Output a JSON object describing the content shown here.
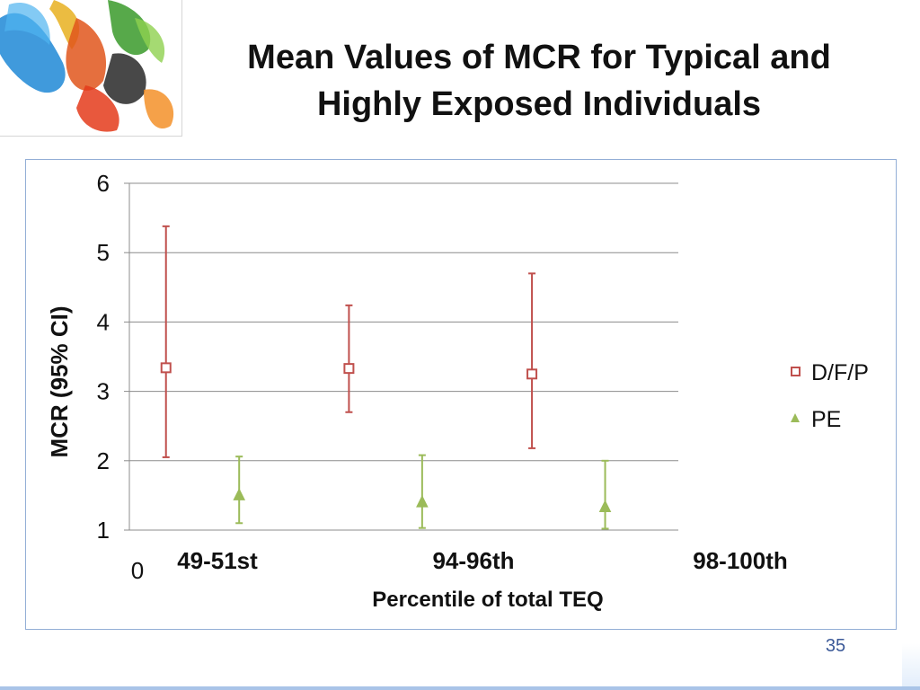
{
  "slide": {
    "title": "Mean Values of MCR for Typical and Highly Exposed Individuals",
    "page_number": "35"
  },
  "logo": {
    "icon": "ink-splash-image"
  },
  "chart_data": {
    "type": "scatter",
    "ylabel": "MCR (95% CI)",
    "xlabel": "Percentile of total TEQ",
    "ylim": [
      1,
      6
    ],
    "yticks": [
      1,
      2,
      3,
      4,
      5,
      6
    ],
    "x_origin_label": "0",
    "grid": true,
    "legend": "right",
    "categories": [
      "49-51st",
      "94-96th",
      "98-100th"
    ],
    "series": [
      {
        "name": "D/F/P",
        "marker": "open-square",
        "color": "#c0504d",
        "values": [
          3.34,
          3.33,
          3.25
        ],
        "ci_low": [
          2.05,
          2.7,
          2.18
        ],
        "ci_high": [
          5.38,
          4.24,
          4.7
        ]
      },
      {
        "name": "PE",
        "marker": "filled-triangle",
        "color": "#9bbb59",
        "values": [
          1.5,
          1.4,
          1.33
        ],
        "ci_low": [
          1.1,
          1.03,
          1.02
        ],
        "ci_high": [
          2.06,
          2.08,
          2.0
        ]
      }
    ]
  }
}
